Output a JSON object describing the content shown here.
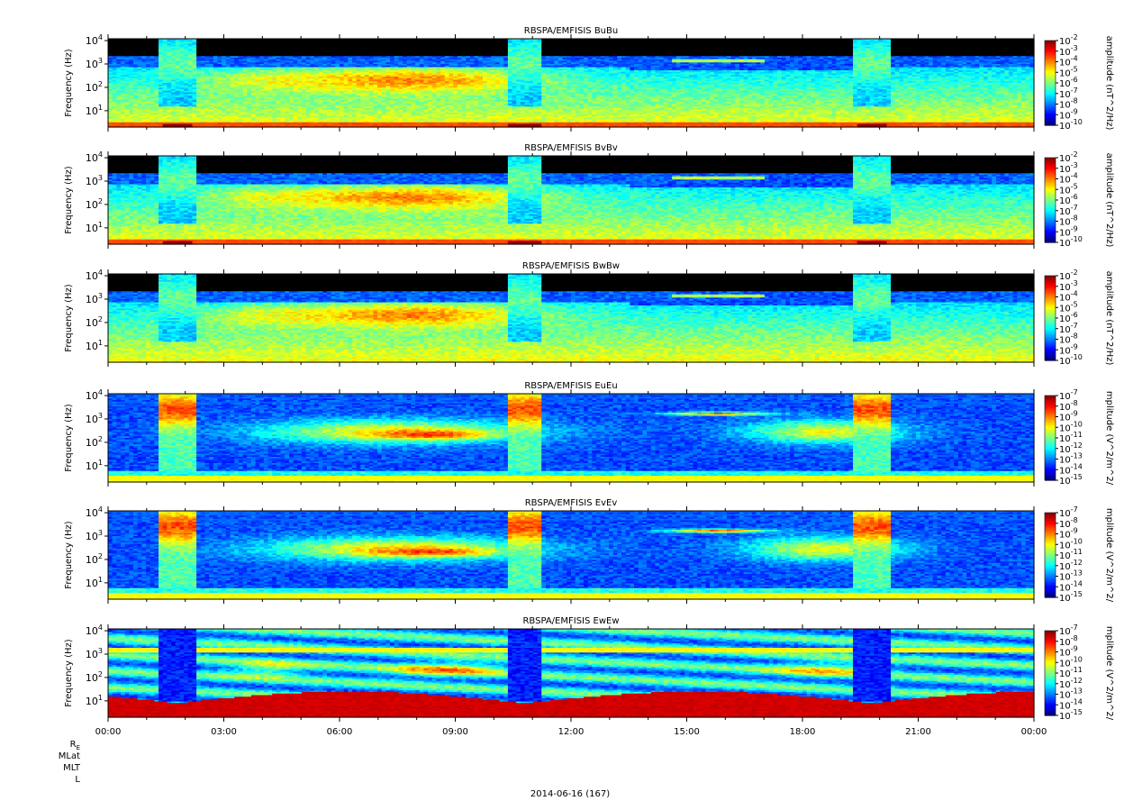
{
  "chart_data": [
    {
      "type": "heatmap",
      "title": "RBSPA/EMFISIS  BuBu",
      "ylabel": "Frequency (Hz)",
      "yscale": "log",
      "ylim": [
        2,
        12000
      ],
      "y_ticks": [
        "10^1",
        "10^2",
        "10^3",
        "10^4"
      ],
      "colorbar": {
        "label": "amplitude (nT^2/Hz)",
        "scale": "log",
        "range": [
          1e-10,
          0.01
        ],
        "ticks": [
          "10^-2",
          "10^-3",
          "10^-4",
          "10^-5",
          "10^-6",
          "10^-7",
          "10^-8",
          "10^-9",
          "10^-10"
        ]
      },
      "features": {
        "variant": "B",
        "background_level": 0.45,
        "floor_red": true
      }
    },
    {
      "type": "heatmap",
      "title": "RBSPA/EMFISIS  BvBv",
      "ylabel": "Frequency (Hz)",
      "yscale": "log",
      "ylim": [
        2,
        12000
      ],
      "y_ticks": [
        "10^1",
        "10^2",
        "10^3",
        "10^4"
      ],
      "colorbar": {
        "label": "amplitude (nT^2/Hz)",
        "scale": "log",
        "range": [
          1e-10,
          0.01
        ],
        "ticks": [
          "10^-2",
          "10^-3",
          "10^-4",
          "10^-5",
          "10^-6",
          "10^-7",
          "10^-8",
          "10^-9",
          "10^-10"
        ]
      },
      "features": {
        "variant": "B",
        "background_level": 0.45,
        "floor_red": true
      }
    },
    {
      "type": "heatmap",
      "title": "RBSPA/EMFISIS  BwBw",
      "ylabel": "Frequency (Hz)",
      "yscale": "log",
      "ylim": [
        2,
        12000
      ],
      "y_ticks": [
        "10^1",
        "10^2",
        "10^3",
        "10^4"
      ],
      "colorbar": {
        "label": "amplitude (nT^2/Hz)",
        "scale": "log",
        "range": [
          1e-10,
          0.01
        ],
        "ticks": [
          "10^-2",
          "10^-3",
          "10^-4",
          "10^-5",
          "10^-6",
          "10^-7",
          "10^-8",
          "10^-9",
          "10^-10"
        ]
      },
      "features": {
        "variant": "B",
        "background_level": 0.42,
        "floor_red": false
      }
    },
    {
      "type": "heatmap",
      "title": "RBSPA/EMFISIS  EuEu",
      "ylabel": "Frequency (Hz)",
      "yscale": "log",
      "ylim": [
        2,
        12000
      ],
      "y_ticks": [
        "10^1",
        "10^2",
        "10^3",
        "10^4"
      ],
      "colorbar": {
        "label": "mplitude (V^2/m^2/",
        "scale": "log",
        "range": [
          1e-15,
          1e-07
        ],
        "ticks": [
          "10^-7",
          "10^-8",
          "10^-9",
          "10^-10",
          "10^-11",
          "10^-12",
          "10^-13",
          "10^-14",
          "10^-15"
        ]
      },
      "features": {
        "variant": "E",
        "background_level": 0.2,
        "floor_red": false
      }
    },
    {
      "type": "heatmap",
      "title": "RBSPA/EMFISIS  EvEv",
      "ylabel": "Frequency (Hz)",
      "yscale": "log",
      "ylim": [
        2,
        12000
      ],
      "y_ticks": [
        "10^1",
        "10^2",
        "10^3",
        "10^4"
      ],
      "colorbar": {
        "label": "mplitude (V^2/m^2/",
        "scale": "log",
        "range": [
          1e-15,
          1e-07
        ],
        "ticks": [
          "10^-7",
          "10^-8",
          "10^-9",
          "10^-10",
          "10^-11",
          "10^-12",
          "10^-13",
          "10^-14",
          "10^-15"
        ]
      },
      "features": {
        "variant": "E",
        "background_level": 0.2,
        "floor_red": false
      }
    },
    {
      "type": "heatmap",
      "title": "RBSPA/EMFISIS  EwEw",
      "ylabel": "Frequency (Hz)",
      "yscale": "log",
      "ylim": [
        2,
        12000
      ],
      "y_ticks": [
        "10^1",
        "10^2",
        "10^3",
        "10^4"
      ],
      "colorbar": {
        "label": "mplitude (V^2/m^2/",
        "scale": "log",
        "range": [
          1e-15,
          1e-07
        ],
        "ticks": [
          "10^-7",
          "10^-8",
          "10^-9",
          "10^-10",
          "10^-11",
          "10^-12",
          "10^-13",
          "10^-14",
          "10^-15"
        ]
      },
      "features": {
        "variant": "EW",
        "background_level": 0.35,
        "floor_red": true
      }
    }
  ],
  "x_axis": {
    "range": [
      "00:00",
      "24:00"
    ],
    "ticks": [
      "00:00",
      "03:00",
      "06:00",
      "09:00",
      "12:00",
      "15:00",
      "18:00",
      "21:00",
      "00:00"
    ]
  },
  "ephemeris_labels": [
    "R",
    "MLat",
    "MLT",
    "L"
  ],
  "ephemeris_subscript": "E",
  "date_label": "2014-06-16 (167)",
  "colors": {
    "background": "#ffffff",
    "axis": "#000000",
    "gap": "#000000"
  }
}
